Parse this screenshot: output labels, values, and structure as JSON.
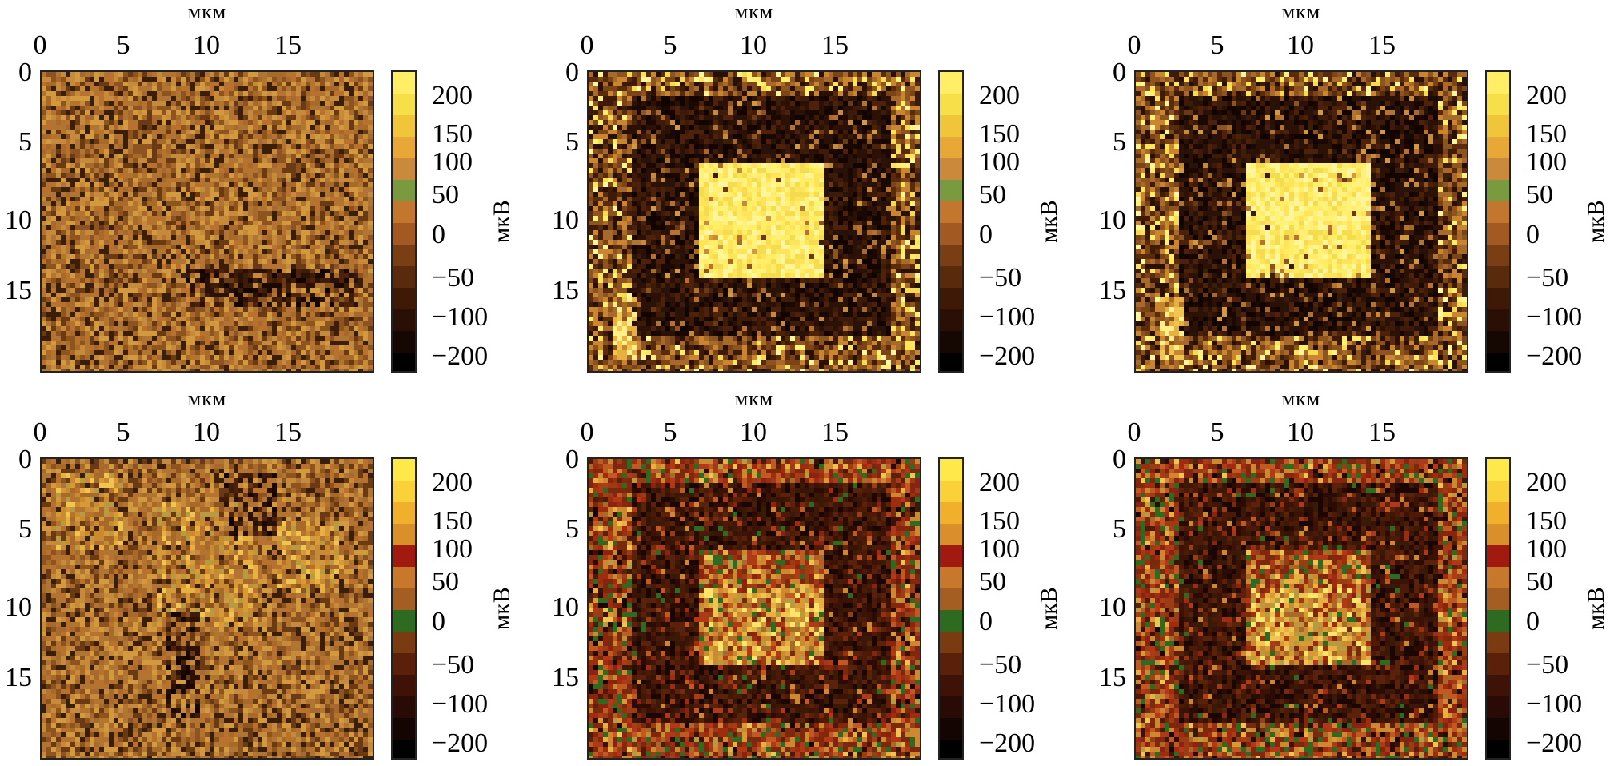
{
  "panels": [
    {
      "x_title": "мкм",
      "colorbar_label": "мкВ",
      "pattern": "flat"
    },
    {
      "x_title": "мкм",
      "colorbar_label": "мкВ",
      "pattern": "square-bright"
    },
    {
      "x_title": "мкм",
      "colorbar_label": "мкВ",
      "pattern": "square-bright"
    },
    {
      "x_title": "мкм",
      "colorbar_label": "мкВ",
      "pattern": "diffuse"
    },
    {
      "x_title": "мкм",
      "colorbar_label": "мкВ",
      "pattern": "square-red"
    },
    {
      "x_title": "мкм",
      "colorbar_label": "мкВ",
      "pattern": "square-red"
    }
  ],
  "x_ticks": [
    "0",
    "5",
    "10",
    "15"
  ],
  "y_ticks": [
    "0",
    "5",
    "10",
    "15"
  ],
  "colorbar_ticks": [
    "200",
    "150",
    "100",
    "50",
    "0",
    "−50",
    "−100",
    "−200"
  ],
  "chart_data": {
    "type": "heatmap",
    "layout": "2 rows × 3 columns",
    "x_range_um": [
      0,
      20
    ],
    "y_range_um": [
      0,
      20
    ],
    "color_range_uV": [
      -250,
      220
    ],
    "colorbar_tick_values": [
      200,
      150,
      100,
      50,
      0,
      -50,
      -100,
      -200
    ],
    "colors": {
      "low": "#000000",
      "mid_low": "#4a1e08",
      "mid": "#a86a2a",
      "high": "#e8b830",
      "max": "#ffee55",
      "accent_red": "#a02010",
      "accent_green": "#2e6a20"
    },
    "square_structure_um": {
      "outer_frame": [
        2.5,
        1.5,
        18,
        17.5
      ],
      "inner_square": [
        6.5,
        6,
        14,
        13.5
      ]
    }
  }
}
